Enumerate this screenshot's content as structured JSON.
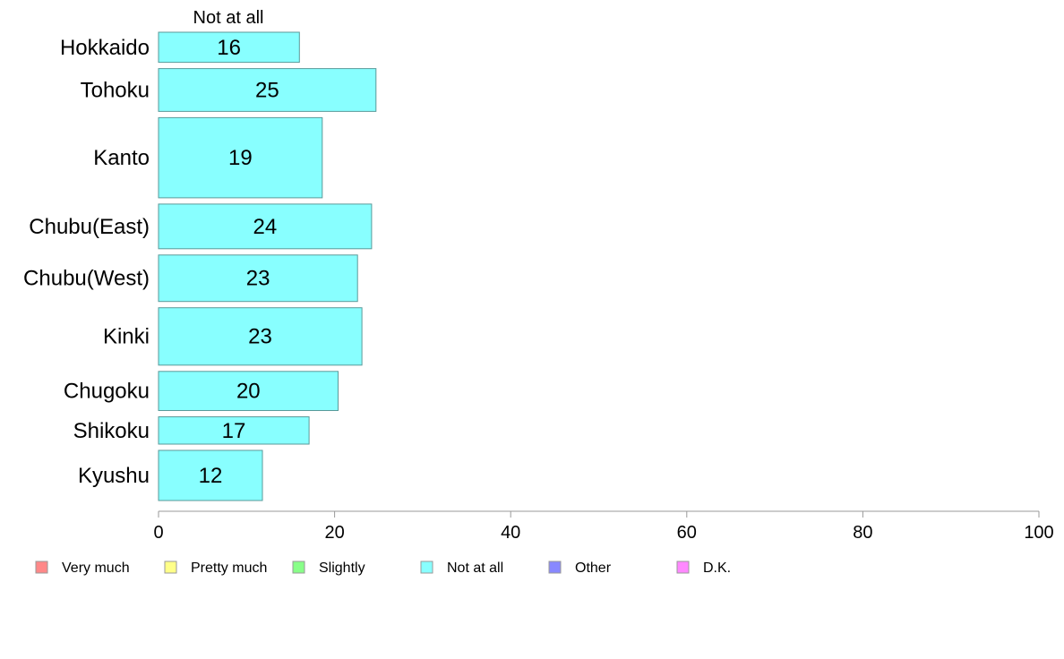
{
  "chart_data": {
    "type": "bar",
    "orientation": "horizontal",
    "stacked": true,
    "series_title": "Not at all",
    "categories": [
      "Hokkaido",
      "Tohoku",
      "Kanto",
      "Chubu(East)",
      "Chubu(West)",
      "Kinki",
      "Chugoku",
      "Shikoku",
      "Kyushu"
    ],
    "relative_bar_heights": [
      33,
      47,
      88,
      49,
      51,
      63,
      43,
      30,
      55
    ],
    "series": [
      {
        "name": "Not at all",
        "color": "#88ffff",
        "values": [
          16,
          24.7,
          18.6,
          24.2,
          22.6,
          23.1,
          20.4,
          17.1,
          11.8
        ],
        "labels": [
          "16",
          "25",
          "19",
          "24",
          "23",
          "23",
          "20",
          "17",
          "12"
        ]
      }
    ],
    "xlim": [
      0,
      100
    ],
    "xticks": [
      "0",
      "20",
      "40",
      "60",
      "80",
      "100"
    ],
    "grid": false,
    "legend_position": "bottom",
    "legend": [
      {
        "label": "Very much",
        "color": "#ff8888"
      },
      {
        "label": "Pretty much",
        "color": "#ffff88"
      },
      {
        "label": "Slightly",
        "color": "#88ff88"
      },
      {
        "label": "Not at all",
        "color": "#88ffff"
      },
      {
        "label": "Other",
        "color": "#8888ff"
      },
      {
        "label": "D.K.",
        "color": "#ff88ff"
      }
    ]
  }
}
